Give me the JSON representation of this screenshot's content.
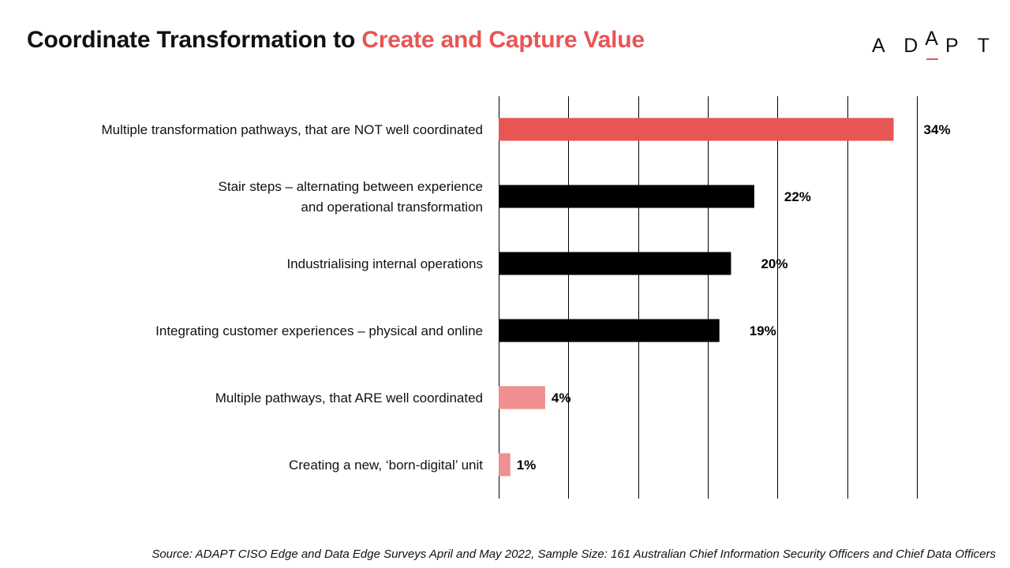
{
  "header": {
    "title_main": "Coordinate Transformation to ",
    "title_accent": "Create and Capture Value",
    "logo": "ADAPT"
  },
  "colors": {
    "accent": "#e85555",
    "highlight_bar": "#e85555",
    "dark_bar": "#000000",
    "light_bar": "#ef8f8f"
  },
  "chart_data": {
    "type": "bar",
    "orientation": "horizontal",
    "categories": [
      [
        "Multiple transformation pathways, that are NOT well coordinated"
      ],
      [
        "Stair steps – alternating between experience",
        "and operational transformation"
      ],
      [
        "Industrialising internal operations"
      ],
      [
        "Integrating customer experiences – physical and online"
      ],
      [
        "Multiple pathways, that ARE well coordinated"
      ],
      [
        "Creating a new, ‘born-digital’ unit"
      ]
    ],
    "values": [
      34,
      22,
      20,
      19,
      4,
      1
    ],
    "value_labels": [
      "34%",
      "22%",
      "20%",
      "19%",
      "4%",
      "1%"
    ],
    "bar_colors": [
      "#e85555",
      "#000000",
      "#000000",
      "#000000",
      "#ef8f8f",
      "#ef8f8f"
    ],
    "xlim": [
      0,
      36
    ],
    "gridlines": [
      0,
      6,
      12,
      18,
      24,
      30,
      36
    ],
    "grid": true,
    "title": "",
    "xlabel": "",
    "ylabel": ""
  },
  "footer": {
    "source": "Source: ADAPT CISO Edge and Data Edge Surveys April and May 2022, Sample Size: 161 Australian Chief Information Security Officers and Chief Data Officers"
  }
}
